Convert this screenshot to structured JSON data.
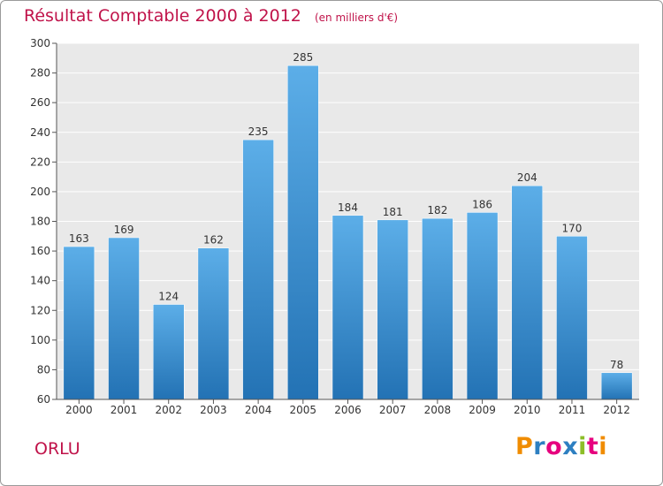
{
  "header": {
    "title": "Résultat Comptable 2000 à 2012",
    "units": "(en milliers d'€)"
  },
  "footer": {
    "town": "ORLU",
    "logo_letters": [
      "P",
      "r",
      "o",
      "x",
      "i",
      "t",
      "i"
    ],
    "logo_colors": [
      "#f08c00",
      "#2d7fc1",
      "#e6007e",
      "#2d7fc1",
      "#8cbe28",
      "#e6007e",
      "#f08c00"
    ]
  },
  "colors": {
    "accent": "#c0134a",
    "bar_top": "#5caee8",
    "bar_bottom": "#2372b4",
    "plot_bg": "#e9e9e9",
    "grid": "#ffffff"
  },
  "chart_data": {
    "type": "bar",
    "title": "Résultat Comptable 2000 à 2012",
    "xlabel": "",
    "ylabel": "",
    "categories": [
      "2000",
      "2001",
      "2002",
      "2003",
      "2004",
      "2005",
      "2006",
      "2007",
      "2008",
      "2009",
      "2010",
      "2011",
      "2012"
    ],
    "values": [
      163,
      169,
      124,
      162,
      235,
      285,
      184,
      181,
      182,
      186,
      204,
      170,
      78
    ],
    "ylim": [
      60,
      300
    ],
    "yticks": [
      60,
      80,
      100,
      120,
      140,
      160,
      180,
      200,
      220,
      240,
      260,
      280,
      300
    ],
    "grid": true
  }
}
